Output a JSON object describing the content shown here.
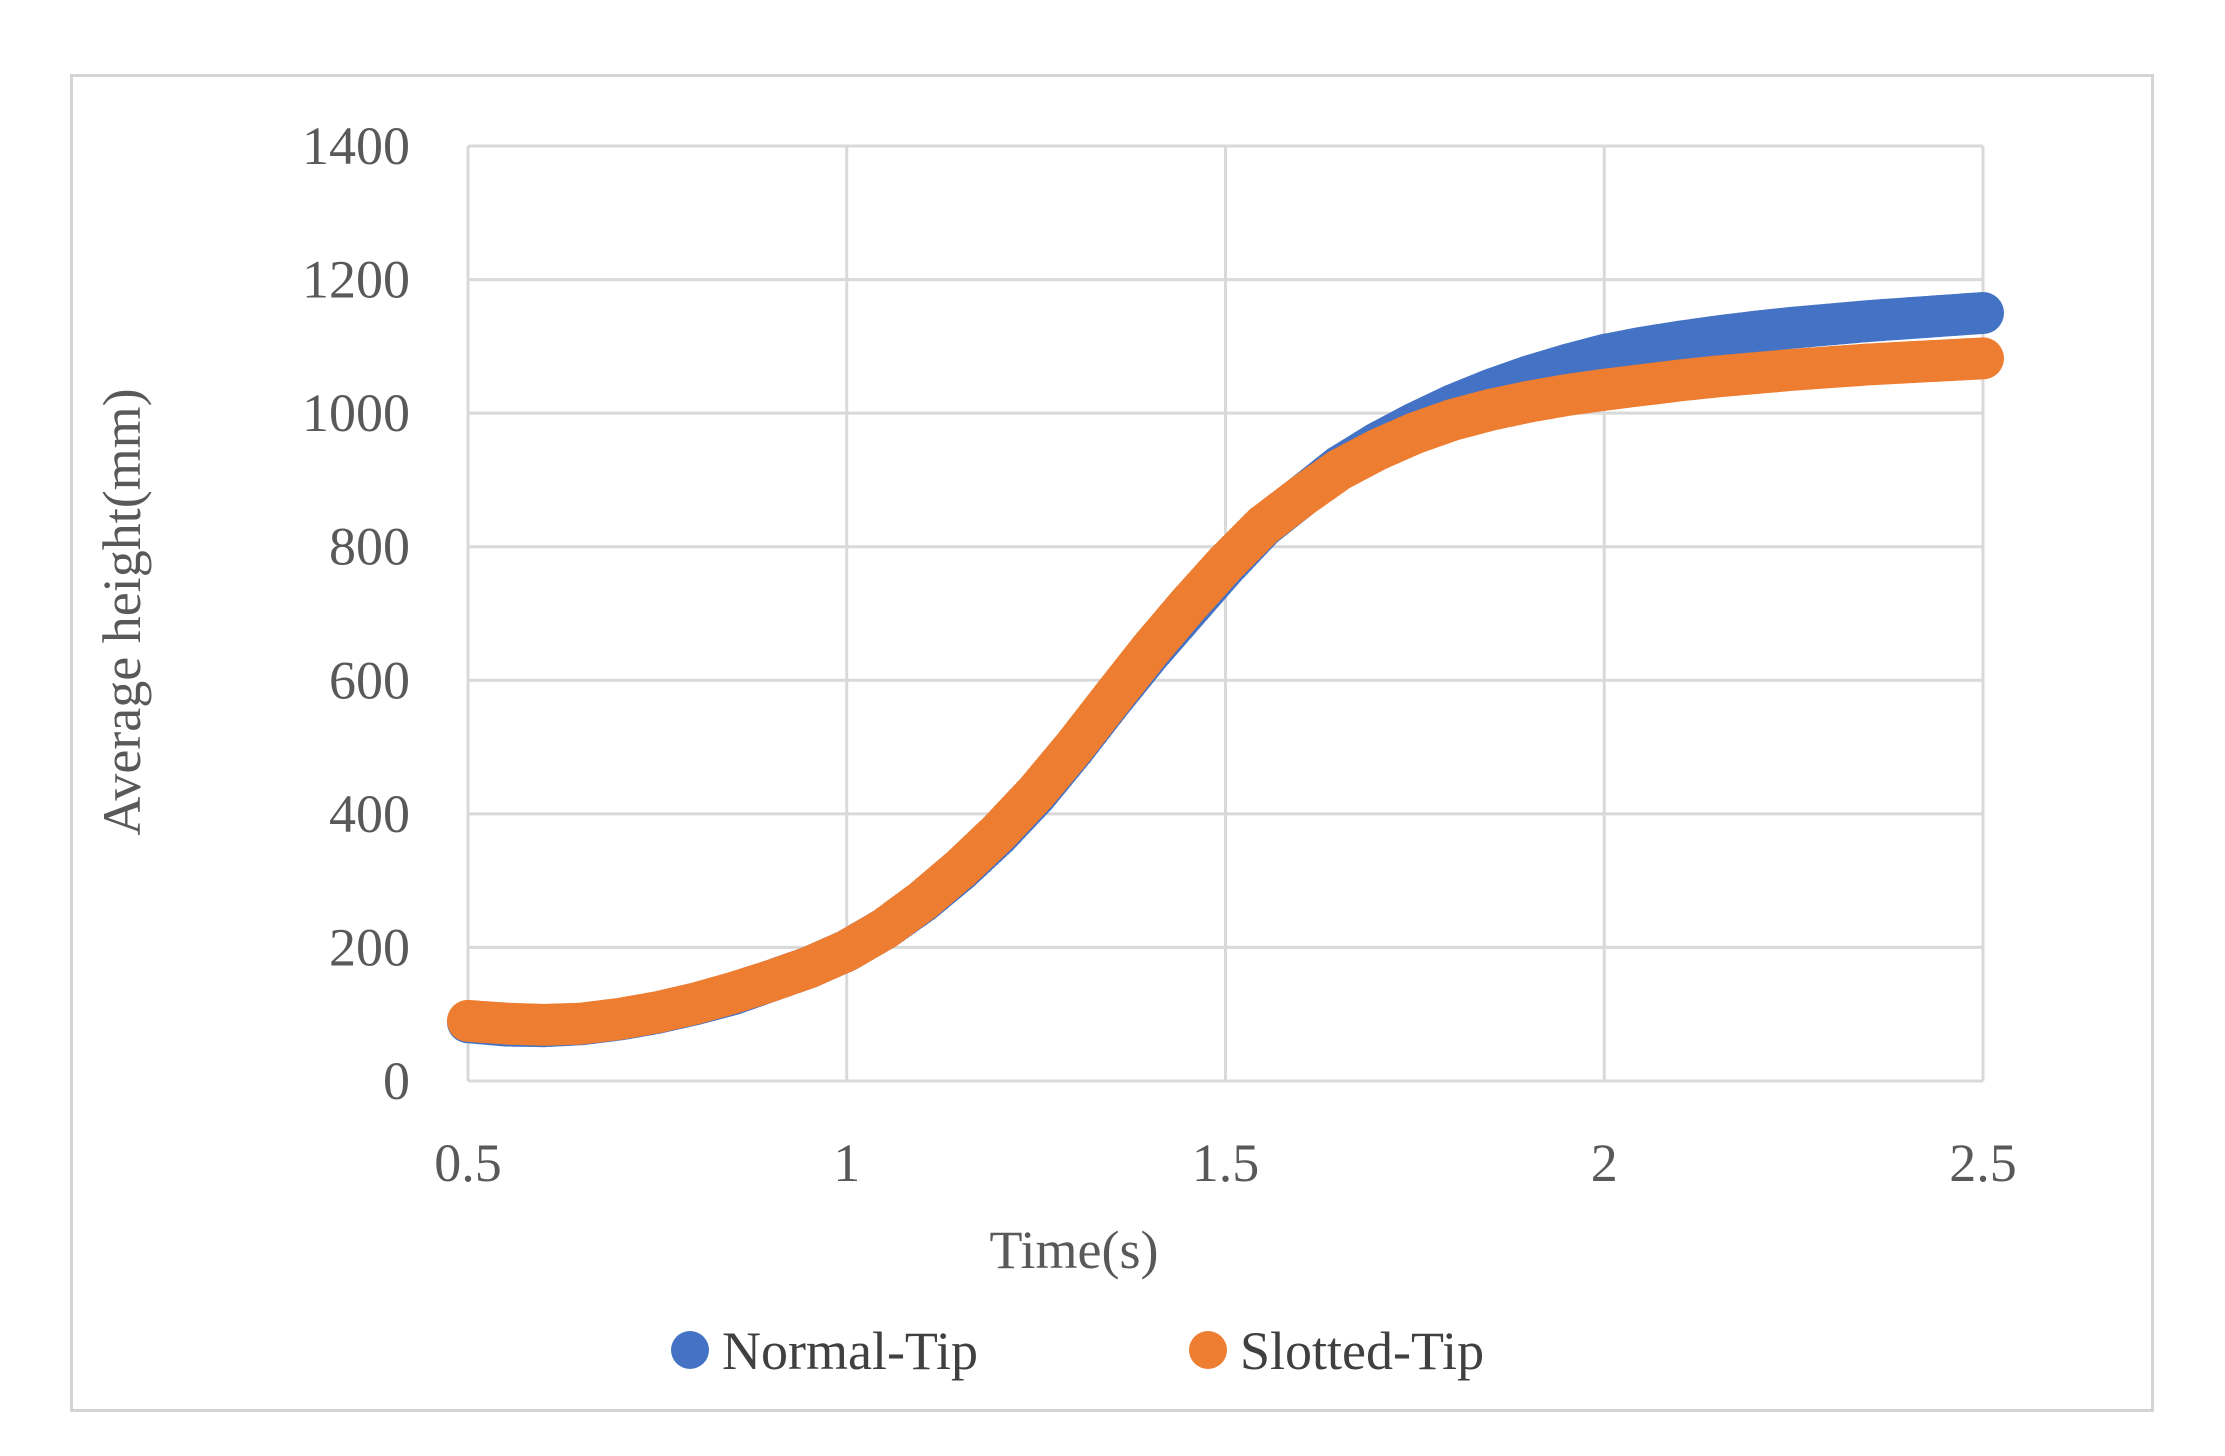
{
  "chart_data": {
    "type": "scatter",
    "xlabel": "Time(s)",
    "ylabel": "Average height(mm)",
    "xlim": [
      0.5,
      2.5
    ],
    "ylim": [
      0,
      1400
    ],
    "x_ticks": [
      "0.5",
      "1",
      "1.5",
      "2",
      "2.5"
    ],
    "y_ticks": [
      "0",
      "200",
      "400",
      "600",
      "800",
      "1000",
      "1200",
      "1400"
    ],
    "grid": true,
    "legend_position": "bottom",
    "x": [
      0.5,
      0.55,
      0.6,
      0.65,
      0.7,
      0.75,
      0.8,
      0.85,
      0.9,
      0.95,
      1.0,
      1.05,
      1.1,
      1.15,
      1.2,
      1.25,
      1.3,
      1.35,
      1.4,
      1.45,
      1.5,
      1.55,
      1.6,
      1.65,
      1.7,
      1.75,
      1.8,
      1.85,
      1.9,
      1.95,
      2.0,
      2.05,
      2.1,
      2.15,
      2.2,
      2.25,
      2.3,
      2.35,
      2.4,
      2.45,
      2.5
    ],
    "series": [
      {
        "name": "Normal-Tip",
        "color": "#4472c4",
        "values": [
          88,
          83,
          82,
          85,
          92,
          102,
          115,
          130,
          150,
          170,
          195,
          228,
          268,
          315,
          368,
          428,
          497,
          570,
          640,
          705,
          770,
          830,
          875,
          920,
          955,
          985,
          1012,
          1035,
          1055,
          1072,
          1087,
          1098,
          1107,
          1115,
          1122,
          1128,
          1133,
          1138,
          1142,
          1146,
          1150
        ]
      },
      {
        "name": "Slotted-Tip",
        "color": "#ed7d31",
        "values": [
          90,
          86,
          84,
          86,
          93,
          103,
          116,
          132,
          150,
          170,
          195,
          228,
          270,
          318,
          372,
          432,
          500,
          573,
          645,
          712,
          775,
          832,
          875,
          915,
          945,
          970,
          990,
          1005,
          1017,
          1027,
          1035,
          1042,
          1049,
          1055,
          1060,
          1065,
          1069,
          1073,
          1076,
          1079,
          1082
        ]
      }
    ]
  }
}
